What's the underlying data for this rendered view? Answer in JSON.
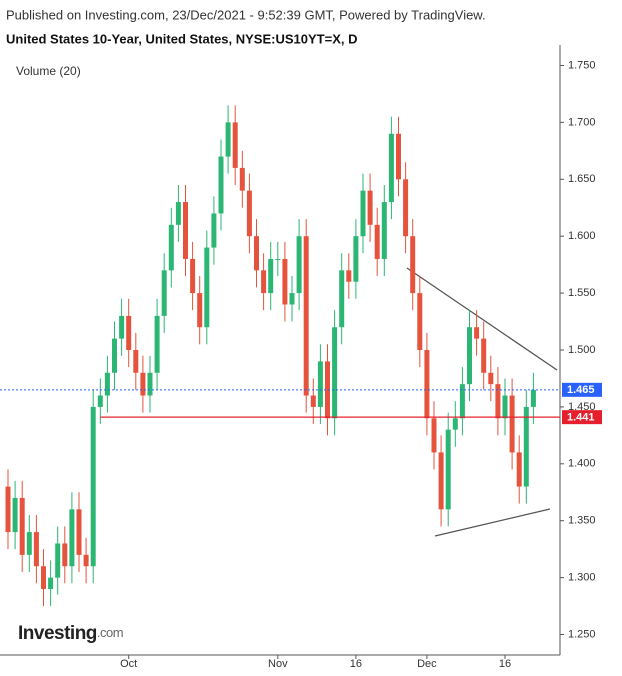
{
  "chart_data": {
    "type": "candlestick",
    "published": "Published on Investing.com, 23/Dec/2021 - 9:52:39 GMT, Powered by TradingView.",
    "title": "United States 10-Year, United States, NYSE:US10YT=X, D",
    "volume_label": "Volume (20)",
    "logo": "Investing",
    "logo_suffix": ".com",
    "up_color": "#2bb673",
    "down_color": "#e5533d",
    "categories": [
      null,
      null,
      null,
      null,
      null,
      null,
      null,
      null,
      null,
      null,
      null,
      null,
      null,
      null,
      null,
      null,
      null,
      "Oct",
      null,
      null,
      null,
      null,
      null,
      null,
      null,
      null,
      null,
      null,
      null,
      null,
      null,
      null,
      null,
      null,
      null,
      null,
      null,
      null,
      "Nov",
      null,
      null,
      null,
      null,
      null,
      null,
      null,
      null,
      null,
      null,
      "16",
      null,
      null,
      null,
      null,
      null,
      null,
      null,
      null,
      null,
      "Dec",
      null,
      null,
      null,
      null,
      null,
      null,
      null,
      null,
      null,
      null,
      "16",
      null,
      null,
      null,
      null
    ],
    "open": [
      1.38,
      1.34,
      1.37,
      1.32,
      1.34,
      1.31,
      1.29,
      1.3,
      1.33,
      1.31,
      1.36,
      1.32,
      1.31,
      1.45,
      1.46,
      1.48,
      1.51,
      1.53,
      1.5,
      1.48,
      1.46,
      1.48,
      1.53,
      1.57,
      1.61,
      1.63,
      1.58,
      1.55,
      1.52,
      1.59,
      1.62,
      1.67,
      1.7,
      1.66,
      1.64,
      1.6,
      1.57,
      1.55,
      1.58,
      1.58,
      1.54,
      1.55,
      1.6,
      1.46,
      1.45,
      1.49,
      1.44,
      1.52,
      1.57,
      1.56,
      1.6,
      1.64,
      1.61,
      1.58,
      1.63,
      1.69,
      1.65,
      1.6,
      1.55,
      1.5,
      1.44,
      1.41,
      1.36,
      1.43,
      1.44,
      1.47,
      1.52,
      1.51,
      1.48,
      1.47,
      1.44,
      1.46,
      1.41,
      1.38,
      1.45
    ],
    "high": [
      1.395,
      1.385,
      1.385,
      1.355,
      1.355,
      1.325,
      1.315,
      1.345,
      1.345,
      1.375,
      1.375,
      1.335,
      1.465,
      1.475,
      1.495,
      1.525,
      1.545,
      1.545,
      1.515,
      1.495,
      1.495,
      1.545,
      1.585,
      1.625,
      1.645,
      1.645,
      1.595,
      1.565,
      1.605,
      1.635,
      1.685,
      1.715,
      1.715,
      1.675,
      1.655,
      1.615,
      1.585,
      1.595,
      1.595,
      1.595,
      1.565,
      1.615,
      1.615,
      1.475,
      1.505,
      1.505,
      1.535,
      1.585,
      1.585,
      1.615,
      1.655,
      1.655,
      1.625,
      1.645,
      1.705,
      1.705,
      1.665,
      1.615,
      1.565,
      1.515,
      1.455,
      1.425,
      1.445,
      1.455,
      1.485,
      1.535,
      1.535,
      1.525,
      1.495,
      1.485,
      1.475,
      1.475,
      1.425,
      1.465,
      1.48
    ],
    "low": [
      1.325,
      1.325,
      1.305,
      1.305,
      1.295,
      1.275,
      1.275,
      1.285,
      1.295,
      1.295,
      1.305,
      1.295,
      1.295,
      1.435,
      1.445,
      1.465,
      1.495,
      1.485,
      1.465,
      1.445,
      1.445,
      1.465,
      1.515,
      1.555,
      1.595,
      1.565,
      1.535,
      1.505,
      1.505,
      1.575,
      1.605,
      1.655,
      1.645,
      1.625,
      1.585,
      1.555,
      1.535,
      1.535,
      1.565,
      1.525,
      1.525,
      1.535,
      1.445,
      1.435,
      1.435,
      1.425,
      1.425,
      1.505,
      1.545,
      1.545,
      1.585,
      1.595,
      1.565,
      1.565,
      1.615,
      1.635,
      1.585,
      1.535,
      1.485,
      1.425,
      1.395,
      1.345,
      1.345,
      1.415,
      1.425,
      1.455,
      1.495,
      1.465,
      1.455,
      1.425,
      1.425,
      1.395,
      1.365,
      1.365,
      1.435
    ],
    "close": [
      1.34,
      1.37,
      1.32,
      1.34,
      1.31,
      1.29,
      1.3,
      1.33,
      1.31,
      1.36,
      1.32,
      1.31,
      1.45,
      1.46,
      1.48,
      1.51,
      1.53,
      1.5,
      1.48,
      1.46,
      1.48,
      1.53,
      1.57,
      1.61,
      1.63,
      1.58,
      1.55,
      1.52,
      1.59,
      1.62,
      1.67,
      1.7,
      1.66,
      1.64,
      1.6,
      1.57,
      1.55,
      1.58,
      1.58,
      1.54,
      1.55,
      1.6,
      1.46,
      1.45,
      1.49,
      1.44,
      1.52,
      1.57,
      1.56,
      1.6,
      1.64,
      1.61,
      1.58,
      1.63,
      1.69,
      1.65,
      1.6,
      1.55,
      1.5,
      1.44,
      1.41,
      1.36,
      1.43,
      1.44,
      1.47,
      1.52,
      1.51,
      1.48,
      1.47,
      1.44,
      1.46,
      1.41,
      1.38,
      1.45,
      1.465
    ],
    "price_lines": [
      {
        "value": 1.465,
        "color": "#2962ff",
        "style": "dotted"
      },
      {
        "value": 1.441,
        "color": "#e5202c",
        "style": "solid"
      }
    ],
    "ylim": [
      1.232,
      1.768
    ],
    "yticks": [
      {
        "value": 1.25,
        "label": "1.250"
      },
      {
        "value": 1.3,
        "label": "1.300"
      },
      {
        "value": 1.35,
        "label": "1.350"
      },
      {
        "value": 1.4,
        "label": "1.400"
      },
      {
        "value": 1.45,
        "label": "1.450"
      },
      {
        "value": 1.5,
        "label": "1.500"
      },
      {
        "value": 1.55,
        "label": "1.550"
      },
      {
        "value": 1.6,
        "label": "1.600"
      },
      {
        "value": 1.65,
        "label": "1.650"
      },
      {
        "value": 1.7,
        "label": "1.700"
      },
      {
        "value": 1.75,
        "label": "1.750"
      }
    ]
  }
}
